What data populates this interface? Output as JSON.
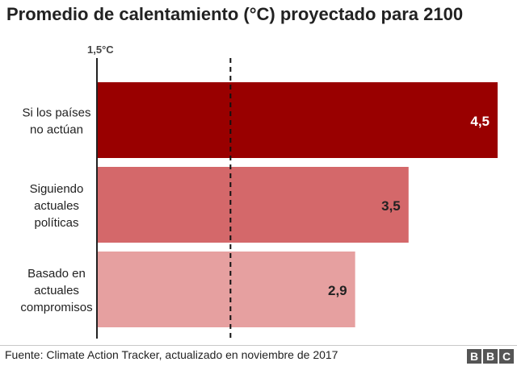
{
  "title": "Promedio de calentamiento (°C) proyectado para 2100",
  "chart_data": {
    "type": "bar",
    "orientation": "horizontal",
    "title": "Promedio de calentamiento (°C) proyectado para 2100",
    "categories": [
      [
        "Si los países",
        "no actúan"
      ],
      [
        "Siguiendo",
        "actuales",
        "políticas"
      ],
      [
        "Basado en",
        "actuales",
        "compromisos"
      ]
    ],
    "values": [
      4.5,
      3.5,
      2.9
    ],
    "value_labels": [
      "4,5",
      "3,5",
      "2,9"
    ],
    "colors": [
      "#990000",
      "#d4686a",
      "#e6a0a0"
    ],
    "label_colors": [
      "#ffffff",
      "#222222",
      "#222222"
    ],
    "reference_line": {
      "value": 1.5,
      "label": "1,5°C",
      "style": "dashed"
    },
    "xlim": [
      0,
      4.5
    ],
    "grid": false
  },
  "footer": {
    "source": "Fuente: Climate Action Tracker, actualizado en noviembre de 2017",
    "logo_letters": [
      "B",
      "B",
      "C"
    ]
  }
}
